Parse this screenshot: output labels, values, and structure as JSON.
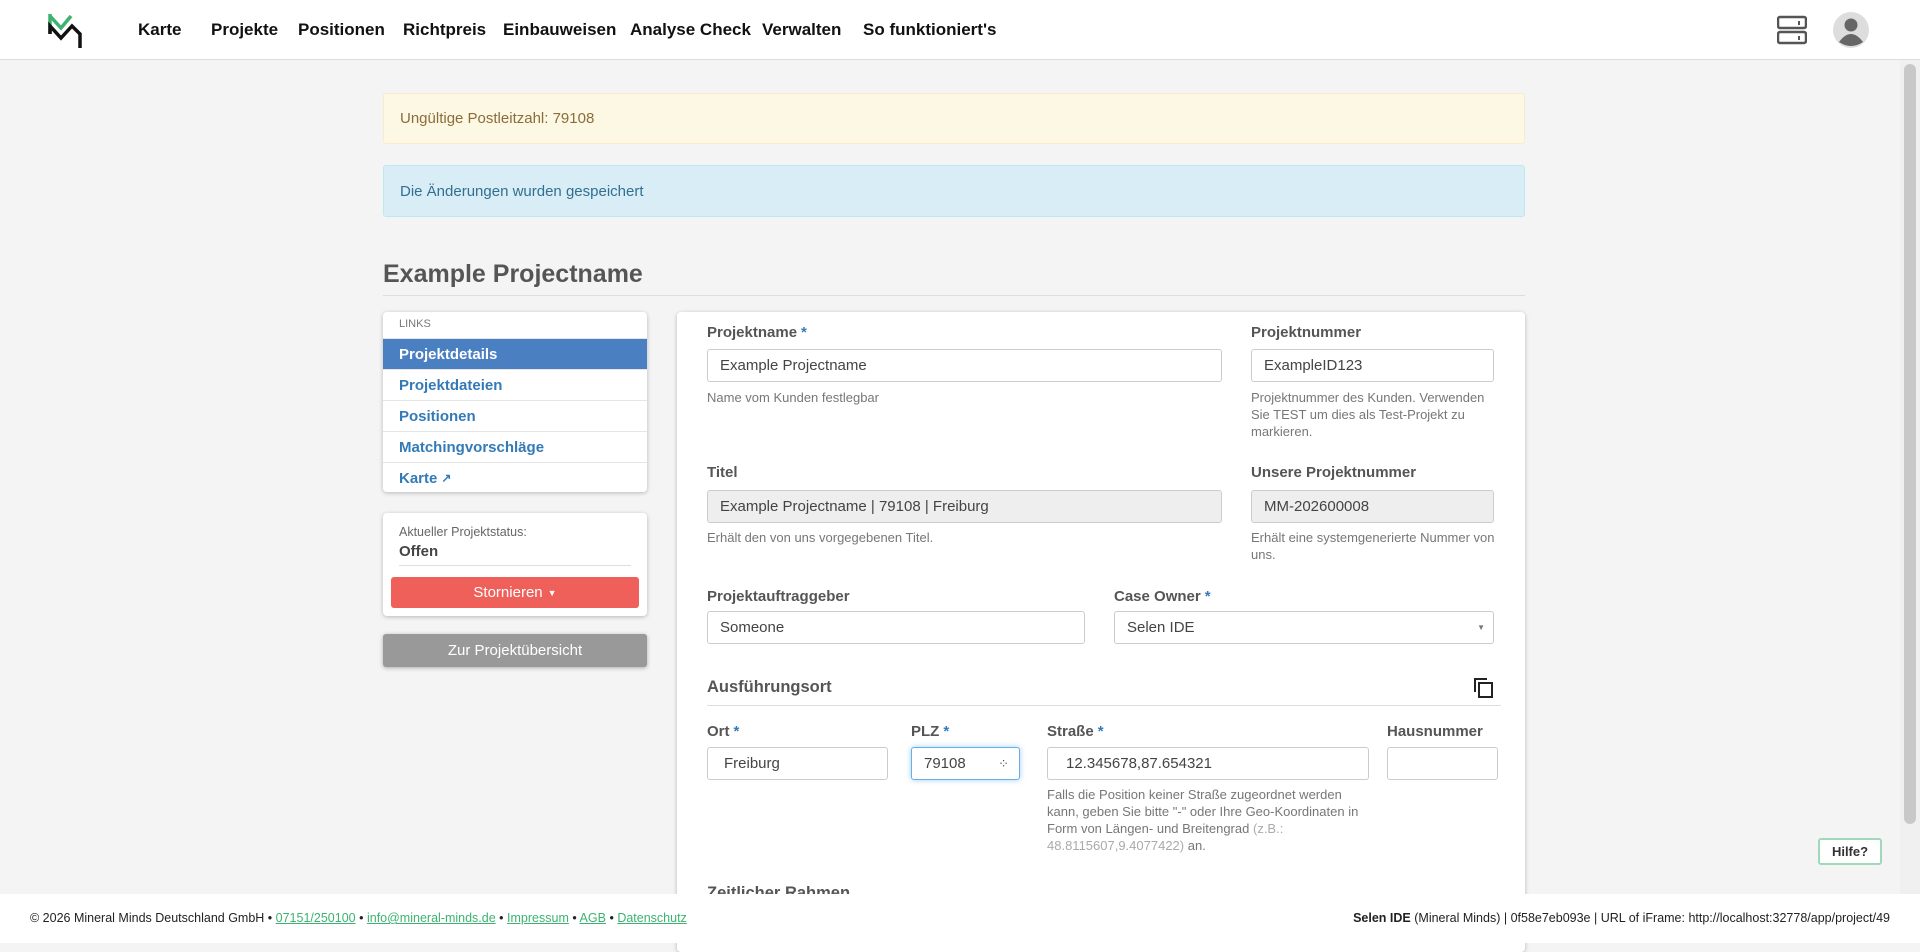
{
  "nav": {
    "items": [
      "Karte",
      "Projekte",
      "Positionen",
      "Richtpreis",
      "Einbauweisen",
      "Analyse Check",
      "Verwalten",
      "So funktioniert's"
    ]
  },
  "alerts": {
    "warning": "Ungültige Postleitzahl: 79108",
    "info": "Die Änderungen wurden gespeichert"
  },
  "page_title": "Example Projectname",
  "sidebar": {
    "header": "LINKS",
    "links": [
      "Projektdetails",
      "Projektdateien",
      "Positionen",
      "Matchingvorschläge",
      "Karte"
    ],
    "status_label": "Aktueller Projektstatus:",
    "status_value": "Offen",
    "cancel_button": "Stornieren",
    "overview_button": "Zur Projektübersicht"
  },
  "form": {
    "projektname": {
      "label": "Projektname",
      "value": "Example Projectname",
      "help": "Name vom Kunden festlegbar"
    },
    "projektnummer": {
      "label": "Projektnummer",
      "value": "ExampleID123",
      "help": "Projektnummer des Kunden. Verwenden Sie TEST um dies als Test-Projekt zu markieren."
    },
    "titel": {
      "label": "Titel",
      "value": "Example Projectname | 79108 | Freiburg",
      "help": "Erhält den von uns vorgegebenen Titel."
    },
    "unsere_nummer": {
      "label": "Unsere Projektnummer",
      "value": "MM-202600008",
      "help": "Erhält eine systemgenerierte Nummer von uns."
    },
    "auftraggeber": {
      "label": "Projektauftraggeber",
      "value": "Someone"
    },
    "case_owner": {
      "label": "Case Owner",
      "value": "Selen IDE"
    },
    "section_location": "Ausführungsort",
    "ort": {
      "label": "Ort",
      "value": "Freiburg"
    },
    "plz": {
      "label": "PLZ",
      "value": "79108"
    },
    "strasse": {
      "label": "Straße",
      "value": "12.345678,87.654321",
      "help": "Falls die Position keiner Straße zugeordnet werden kann, geben Sie bitte \"-\" oder Ihre Geo-Koordinaten in Form von Längen- und Breitengrad",
      "help_example": "(z.B.: 48.8115607,9.4077422)",
      "help_end": " an."
    },
    "hausnummer": {
      "label": "Hausnummer",
      "value": ""
    },
    "section_time": "Zeitlicher Rahmen",
    "required_mark": "*"
  },
  "help_button": "Hilfe?",
  "footer": {
    "copyright": "© 2026 Mineral Minds Deutschland GmbH •",
    "phone": "07151/250100",
    "email": "info@mineral-minds.de",
    "impressum": "Impressum",
    "agb": "AGB",
    "datenschutz": "Datenschutz",
    "sep": "•",
    "user": "Selen IDE",
    "right_text": "(Mineral Minds) | 0f58e7eb093e | URL of iFrame: http://localhost:32778/app/project/49"
  },
  "colors": {
    "accent": "#4a7fc1",
    "danger": "#f0605a",
    "brand_green": "#3cb371"
  }
}
